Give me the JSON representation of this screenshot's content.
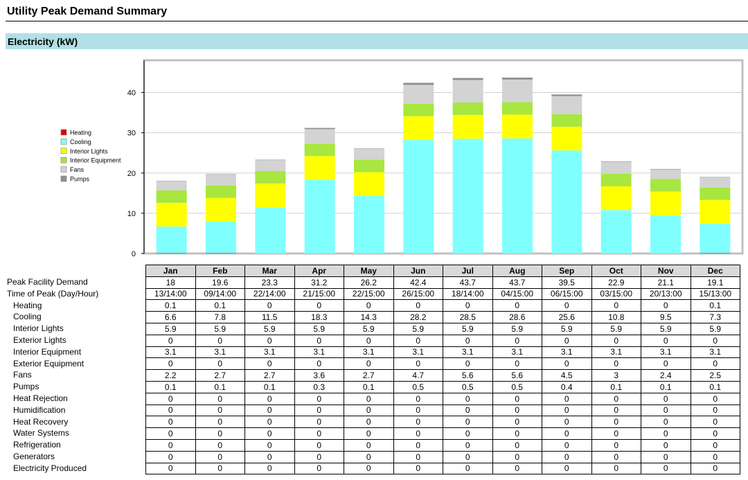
{
  "page": {
    "title": "Utility Peak Demand Summary"
  },
  "section": {
    "title": "Electricity (kW)"
  },
  "chart_data": {
    "type": "bar",
    "stacked": true,
    "categories": [
      "Jan",
      "Feb",
      "Mar",
      "Apr",
      "May",
      "Jun",
      "Jul",
      "Aug",
      "Sep",
      "Oct",
      "Nov",
      "Dec"
    ],
    "series": [
      {
        "name": "Heating",
        "color": "#e00000",
        "values": [
          0.1,
          0.1,
          0,
          0,
          0,
          0,
          0,
          0,
          0,
          0,
          0,
          0.1
        ]
      },
      {
        "name": "Cooling",
        "color": "#80ffff",
        "values": [
          6.6,
          7.8,
          11.5,
          18.3,
          14.3,
          28.2,
          28.5,
          28.6,
          25.6,
          10.8,
          9.5,
          7.3
        ]
      },
      {
        "name": "Interior Lights",
        "color": "#ffff00",
        "values": [
          5.9,
          5.9,
          5.9,
          5.9,
          5.9,
          5.9,
          5.9,
          5.9,
          5.9,
          5.9,
          5.9,
          5.9
        ]
      },
      {
        "name": "Interior Equipment",
        "color": "#a8e640",
        "values": [
          3.1,
          3.1,
          3.1,
          3.1,
          3.1,
          3.1,
          3.1,
          3.1,
          3.1,
          3.1,
          3.1,
          3.1
        ]
      },
      {
        "name": "Fans",
        "color": "#d3d3d3",
        "values": [
          2.2,
          2.7,
          2.7,
          3.6,
          2.7,
          4.7,
          5.6,
          5.6,
          4.5,
          3,
          2.4,
          2.5
        ]
      },
      {
        "name": "Pumps",
        "color": "#909090",
        "values": [
          0.1,
          0.1,
          0.1,
          0.3,
          0.1,
          0.5,
          0.5,
          0.5,
          0.4,
          0.1,
          0.1,
          0.1
        ]
      }
    ],
    "ylim": [
      0,
      48
    ],
    "yticks": [
      "0",
      "10",
      "20",
      "30",
      "40"
    ],
    "grid": true,
    "legend": "left"
  },
  "table": {
    "months": [
      "Jan",
      "Feb",
      "Mar",
      "Apr",
      "May",
      "Jun",
      "Jul",
      "Aug",
      "Sep",
      "Oct",
      "Nov",
      "Dec"
    ],
    "rows": [
      {
        "label": "Peak Facility Demand",
        "sub": false,
        "values": [
          "18",
          "19.6",
          "23.3",
          "31.2",
          "26.2",
          "42.4",
          "43.7",
          "43.7",
          "39.5",
          "22.9",
          "21.1",
          "19.1"
        ]
      },
      {
        "label": "Time of Peak (Day/Hour)",
        "sub": false,
        "values": [
          "13/14:00",
          "09/14:00",
          "22/14:00",
          "21/15:00",
          "22/15:00",
          "26/15:00",
          "18/14:00",
          "04/15:00",
          "06/15:00",
          "03/15:00",
          "20/13:00",
          "15/13:00"
        ]
      },
      {
        "label": "Heating",
        "sub": true,
        "values": [
          "0.1",
          "0.1",
          "0",
          "0",
          "0",
          "0",
          "0",
          "0",
          "0",
          "0",
          "0",
          "0.1"
        ]
      },
      {
        "label": "Cooling",
        "sub": true,
        "values": [
          "6.6",
          "7.8",
          "11.5",
          "18.3",
          "14.3",
          "28.2",
          "28.5",
          "28.6",
          "25.6",
          "10.8",
          "9.5",
          "7.3"
        ]
      },
      {
        "label": "Interior Lights",
        "sub": true,
        "values": [
          "5.9",
          "5.9",
          "5.9",
          "5.9",
          "5.9",
          "5.9",
          "5.9",
          "5.9",
          "5.9",
          "5.9",
          "5.9",
          "5.9"
        ]
      },
      {
        "label": "Exterior Lights",
        "sub": true,
        "values": [
          "0",
          "0",
          "0",
          "0",
          "0",
          "0",
          "0",
          "0",
          "0",
          "0",
          "0",
          "0"
        ]
      },
      {
        "label": "Interior Equipment",
        "sub": true,
        "values": [
          "3.1",
          "3.1",
          "3.1",
          "3.1",
          "3.1",
          "3.1",
          "3.1",
          "3.1",
          "3.1",
          "3.1",
          "3.1",
          "3.1"
        ]
      },
      {
        "label": "Exterior Equipment",
        "sub": true,
        "values": [
          "0",
          "0",
          "0",
          "0",
          "0",
          "0",
          "0",
          "0",
          "0",
          "0",
          "0",
          "0"
        ]
      },
      {
        "label": "Fans",
        "sub": true,
        "values": [
          "2.2",
          "2.7",
          "2.7",
          "3.6",
          "2.7",
          "4.7",
          "5.6",
          "5.6",
          "4.5",
          "3",
          "2.4",
          "2.5"
        ]
      },
      {
        "label": "Pumps",
        "sub": true,
        "values": [
          "0.1",
          "0.1",
          "0.1",
          "0.3",
          "0.1",
          "0.5",
          "0.5",
          "0.5",
          "0.4",
          "0.1",
          "0.1",
          "0.1"
        ]
      },
      {
        "label": "Heat Rejection",
        "sub": true,
        "values": [
          "0",
          "0",
          "0",
          "0",
          "0",
          "0",
          "0",
          "0",
          "0",
          "0",
          "0",
          "0"
        ]
      },
      {
        "label": "Humidification",
        "sub": true,
        "values": [
          "0",
          "0",
          "0",
          "0",
          "0",
          "0",
          "0",
          "0",
          "0",
          "0",
          "0",
          "0"
        ]
      },
      {
        "label": "Heat Recovery",
        "sub": true,
        "values": [
          "0",
          "0",
          "0",
          "0",
          "0",
          "0",
          "0",
          "0",
          "0",
          "0",
          "0",
          "0"
        ]
      },
      {
        "label": "Water Systems",
        "sub": true,
        "values": [
          "0",
          "0",
          "0",
          "0",
          "0",
          "0",
          "0",
          "0",
          "0",
          "0",
          "0",
          "0"
        ]
      },
      {
        "label": "Refrigeration",
        "sub": true,
        "values": [
          "0",
          "0",
          "0",
          "0",
          "0",
          "0",
          "0",
          "0",
          "0",
          "0",
          "0",
          "0"
        ]
      },
      {
        "label": "Generators",
        "sub": true,
        "values": [
          "0",
          "0",
          "0",
          "0",
          "0",
          "0",
          "0",
          "0",
          "0",
          "0",
          "0",
          "0"
        ]
      },
      {
        "label": "Electricity Produced",
        "sub": true,
        "values": [
          "0",
          "0",
          "0",
          "0",
          "0",
          "0",
          "0",
          "0",
          "0",
          "0",
          "0",
          "0"
        ]
      }
    ]
  }
}
